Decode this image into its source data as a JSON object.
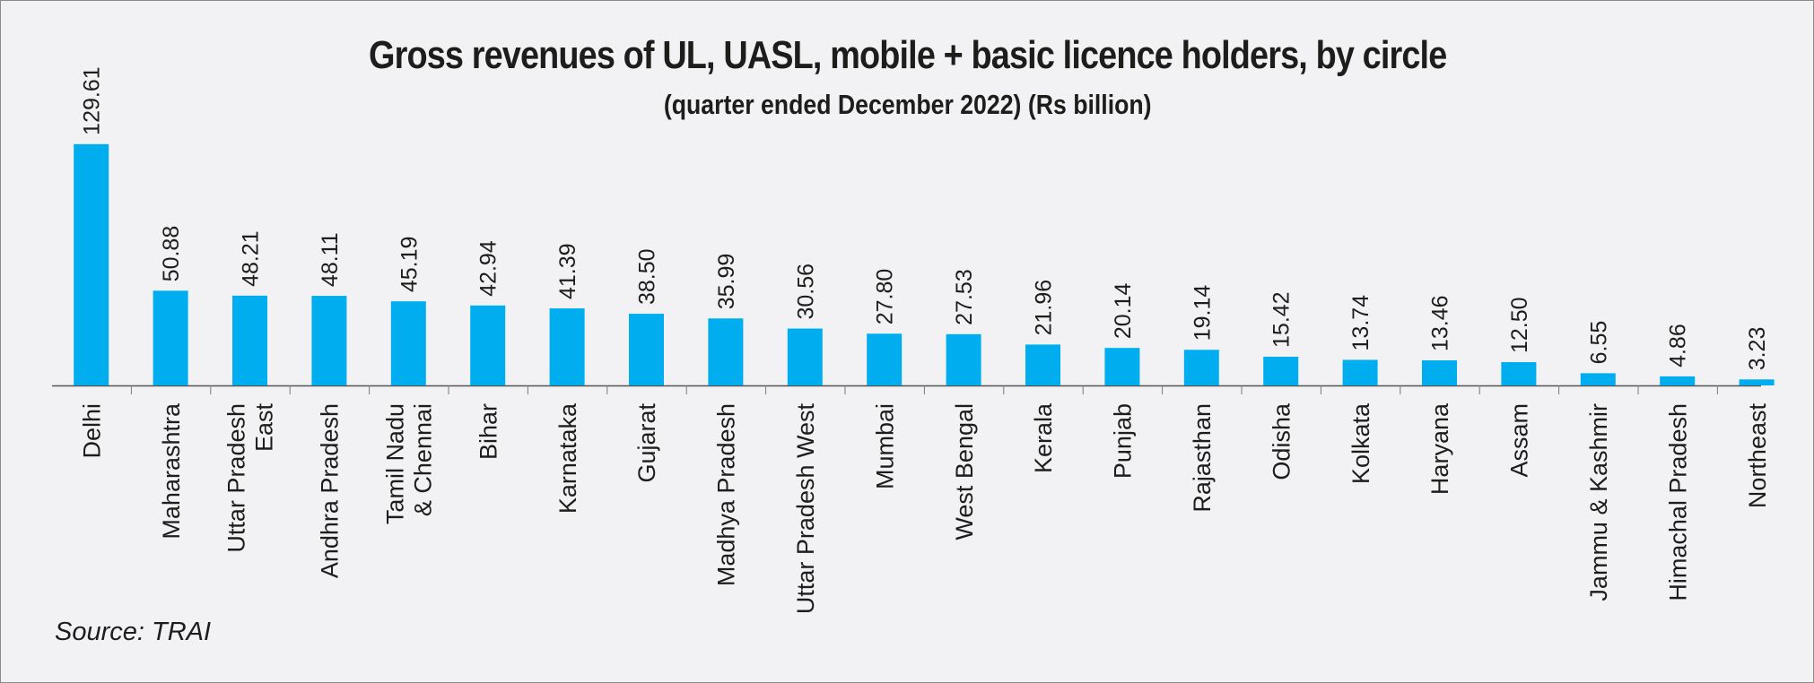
{
  "chart_data": {
    "type": "bar",
    "title": "Gross revenues of UL, UASL, mobile + basic licence holders, by circle",
    "subtitle": "(quarter ended December 2022) (Rs billion)",
    "xlabel": "",
    "ylabel": "",
    "ylim": [
      0,
      130
    ],
    "grid": false,
    "legend": "none",
    "bar_color": "#00aeef",
    "categories": [
      "Delhi",
      "Maharashtra",
      "Uttar Pradesh East",
      "Andhra Pradesh",
      "Tamil Nadu & Chennai",
      "Bihar",
      "Karnataka",
      "Gujarat",
      "Madhya Pradesh",
      "Uttar Pradesh West",
      "Mumbai",
      "West Bengal",
      "Kerala",
      "Punjab",
      "Rajasthan",
      "Odisha",
      "Kolkata",
      "Haryana",
      "Assam",
      "Jammu & Kashmir",
      "Himachal Pradesh",
      "Northeast"
    ],
    "category_label_lines": [
      [
        "Delhi"
      ],
      [
        "Maharashtra"
      ],
      [
        "Uttar Pradesh",
        "East"
      ],
      [
        "Andhra Pradesh"
      ],
      [
        "Tamil Nadu",
        "& Chennai"
      ],
      [
        "Bihar"
      ],
      [
        "Karnataka"
      ],
      [
        "Gujarat"
      ],
      [
        "Madhya Pradesh"
      ],
      [
        "Uttar Pradesh West"
      ],
      [
        "Mumbai"
      ],
      [
        "West Bengal"
      ],
      [
        "Kerala"
      ],
      [
        "Punjab"
      ],
      [
        "Rajasthan"
      ],
      [
        "Odisha"
      ],
      [
        "Kolkata"
      ],
      [
        "Haryana"
      ],
      [
        "Assam"
      ],
      [
        "Jammu & Kashmir"
      ],
      [
        "Himachal Pradesh"
      ],
      [
        "Northeast"
      ]
    ],
    "values": [
      129.61,
      50.88,
      48.21,
      48.11,
      45.19,
      42.94,
      41.39,
      38.5,
      35.99,
      30.56,
      27.8,
      27.53,
      21.96,
      20.14,
      19.14,
      15.42,
      13.74,
      13.46,
      12.5,
      6.55,
      4.86,
      3.23
    ],
    "value_labels": [
      "129.61",
      "50.88",
      "48.21",
      "48.11",
      "45.19",
      "42.94",
      "41.39",
      "38.50",
      "35.99",
      "30.56",
      "27.80",
      "27.53",
      "21.96",
      "20.14",
      "19.14",
      "15.42",
      "13.74",
      "13.46",
      "12.50",
      "6.55",
      "4.86",
      "3.23"
    ],
    "source": "Source: TRAI"
  }
}
